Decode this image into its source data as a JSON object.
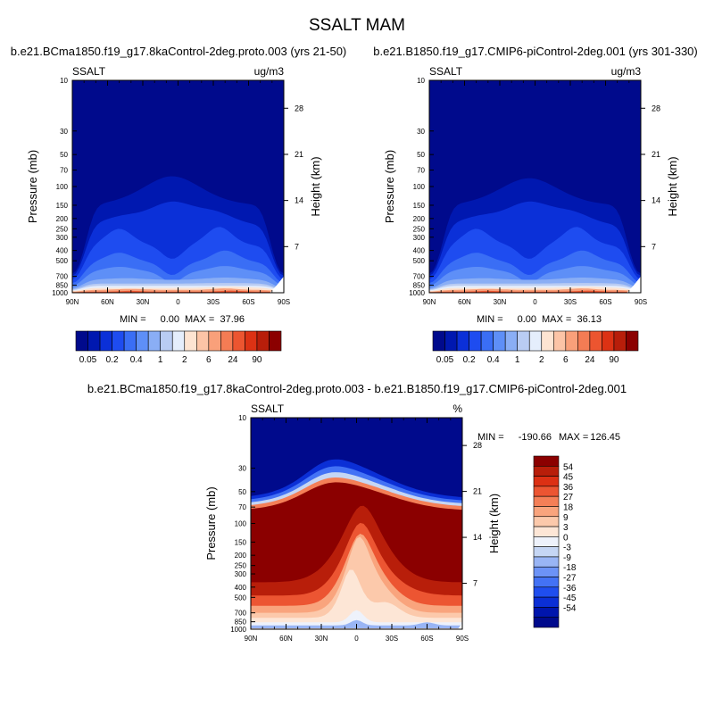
{
  "main_title": "SSALT MAM",
  "colors": {
    "abs_scale": [
      "#000a8c",
      "#0018b0",
      "#0b30d8",
      "#1e4cf0",
      "#3a6ef5",
      "#5e8ff7",
      "#8aaef5",
      "#b9ccf3",
      "#e5eefc",
      "#fde4d2",
      "#fcc4a6",
      "#f9a07a",
      "#f47c54",
      "#ec5530",
      "#dc3214",
      "#b81e0a",
      "#8b0000"
    ],
    "diff_scale": [
      "#000a8c",
      "#0015ad",
      "#0b2fd6",
      "#1f4eef",
      "#4372f5",
      "#6c93f7",
      "#99b5f5",
      "#c5d6f4",
      "#eef2fb",
      "#fde6d6",
      "#fcc9ab",
      "#f9a47d",
      "#f47f57",
      "#ec5532",
      "#dc3014",
      "#b81e0a",
      "#8b0000"
    ]
  },
  "chart_data": [
    {
      "type": "heatmap",
      "title": "b.e21.BCma1850.f19_g17.8kaControl-2deg.proto.003 (yrs 21-50)",
      "variable_label": "SSALT",
      "units_label": "ug/m3",
      "xlabel": "",
      "ylabel": "Pressure (mb)",
      "ylabel_right": "Height (km)",
      "x_tick_labels": [
        "90N",
        "60N",
        "30N",
        "0",
        "30S",
        "60S",
        "90S"
      ],
      "x_tick_values": [
        90,
        60,
        30,
        0,
        -30,
        -60,
        -90
      ],
      "y_tick_labels": [
        "10",
        "30",
        "50",
        "70",
        "100",
        "150",
        "200",
        "250",
        "300",
        "400",
        "500",
        "700",
        "850",
        "1000"
      ],
      "y_tick_values": [
        10,
        30,
        50,
        70,
        100,
        150,
        200,
        250,
        300,
        400,
        500,
        700,
        850,
        1000
      ],
      "y_scale": "log",
      "ylim": [
        1000,
        10
      ],
      "height_tick_labels": [
        "28",
        "21",
        "14",
        "7"
      ],
      "height_tick_values": [
        28,
        21,
        14,
        7
      ],
      "stats": {
        "min_label": "MIN =",
        "min": "0.00",
        "max_label": "MAX =",
        "max": "37.96"
      },
      "colorbar_labels": [
        "0.05",
        "0.2",
        "0.4",
        "1",
        "2",
        "6",
        "24",
        "90"
      ],
      "colorbar_orientation": "horizontal",
      "field": {
        "kind": "abs",
        "top_shift_deg": 0,
        "bump_px": 8,
        "extent": 1.0
      }
    },
    {
      "type": "heatmap",
      "title": "b.e21.B1850.f19_g17.CMIP6-piControl-2deg.001 (yrs 301-330)",
      "variable_label": "SSALT",
      "units_label": "ug/m3",
      "xlabel": "",
      "ylabel": "Pressure (mb)",
      "ylabel_right": "Height (km)",
      "x_tick_labels": [
        "90N",
        "60N",
        "30N",
        "0",
        "30S",
        "60S",
        "90S"
      ],
      "x_tick_values": [
        90,
        60,
        30,
        0,
        -30,
        -60,
        -90
      ],
      "y_tick_labels": [
        "10",
        "30",
        "50",
        "70",
        "100",
        "150",
        "200",
        "250",
        "300",
        "400",
        "500",
        "700",
        "850",
        "1000"
      ],
      "y_tick_values": [
        10,
        30,
        50,
        70,
        100,
        150,
        200,
        250,
        300,
        400,
        500,
        700,
        850,
        1000
      ],
      "y_scale": "log",
      "ylim": [
        1000,
        10
      ],
      "height_tick_labels": [
        "28",
        "21",
        "14",
        "7"
      ],
      "height_tick_values": [
        28,
        21,
        14,
        7
      ],
      "stats": {
        "min_label": "MIN =",
        "min": "0.00",
        "max_label": "MAX =",
        "max": "36.13"
      },
      "colorbar_labels": [
        "0.05",
        "0.2",
        "0.4",
        "1",
        "2",
        "6",
        "24",
        "90"
      ],
      "colorbar_orientation": "horizontal",
      "field": {
        "kind": "abs",
        "top_shift_deg": 0,
        "bump_px": 0,
        "extent": 0.95
      }
    },
    {
      "type": "heatmap",
      "title": "b.e21.BCma1850.f19_g17.8kaControl-2deg.proto.003 - b.e21.B1850.f19_g17.CMIP6-piControl-2deg.001",
      "variable_label": "SSALT",
      "units_label": "%",
      "xlabel": "",
      "ylabel": "Pressure (mb)",
      "ylabel_right": "Height (km)",
      "x_tick_labels": [
        "90N",
        "60N",
        "30N",
        "0",
        "30S",
        "60S",
        "90S"
      ],
      "x_tick_values": [
        90,
        60,
        30,
        0,
        -30,
        -60,
        -90
      ],
      "y_tick_labels": [
        "10",
        "30",
        "50",
        "70",
        "100",
        "150",
        "200",
        "250",
        "300",
        "400",
        "500",
        "700",
        "850",
        "1000"
      ],
      "y_tick_values": [
        10,
        30,
        50,
        70,
        100,
        150,
        200,
        250,
        300,
        400,
        500,
        700,
        850,
        1000
      ],
      "y_scale": "log",
      "ylim": [
        1000,
        10
      ],
      "height_tick_labels": [
        "28",
        "21",
        "14",
        "7"
      ],
      "height_tick_values": [
        28,
        21,
        14,
        7
      ],
      "stats": {
        "min_label": "MIN =",
        "min": "-190.66",
        "max_label": "MAX =",
        "max": "126.45"
      },
      "colorbar_labels": [
        "54",
        "45",
        "36",
        "27",
        "18",
        "9",
        "3",
        "0",
        "-3",
        "-9",
        "-18",
        "-27",
        "-36",
        "-45",
        "-54"
      ],
      "colorbar_orientation": "vertical",
      "field": {
        "kind": "diff"
      }
    }
  ]
}
